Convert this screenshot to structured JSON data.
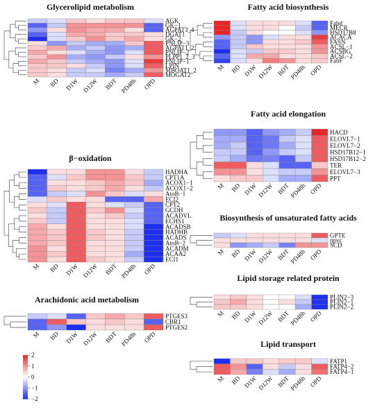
{
  "chart_data": [
    {
      "type": "heatmap",
      "title": "Glycerolipid metabolism",
      "categories": [
        "M",
        "BD",
        "D1W",
        "D12W",
        "BDT",
        "PD48h",
        "OPD"
      ],
      "rows": [
        "AGK",
        "GK−1",
        "AGPAT3_4",
        "DGAT1",
        "GK−2",
        "PNLIP−3",
        "AGPAT1_2",
        "PNLIP−2",
        "PLPP1_2_3",
        "PNLIP−1",
        "LPIN",
        "MBOAT1_2",
        "MOGAT2"
      ],
      "values": [
        [
          -0.5,
          -0.3,
          0.5,
          0.3,
          0.5,
          0.5,
          -0.3
        ],
        [
          -1.5,
          -0.5,
          1,
          1,
          1,
          1,
          -1.5
        ],
        [
          -1,
          0.3,
          1,
          0.8,
          0.8,
          0.3,
          -1.5
        ],
        [
          -1.5,
          -0.3,
          0.8,
          0.8,
          0.5,
          0.5,
          0.3
        ],
        [
          -2,
          -0.3,
          0.5,
          1,
          0.5,
          0.8,
          0.3
        ],
        [
          0.3,
          -1,
          -0.5,
          -0.8,
          -0.8,
          0.5,
          1.5
        ],
        [
          0.5,
          0.8,
          -0.8,
          -0.5,
          -1,
          -0.8,
          1.5
        ],
        [
          0.8,
          0.3,
          -0.3,
          -0.8,
          -1,
          -0.3,
          1.5
        ],
        [
          0.5,
          1,
          -0.8,
          -1,
          -0.5,
          0.3,
          1
        ],
        [
          0.8,
          0.5,
          -0.5,
          -0.8,
          -1,
          -0.3,
          1.8
        ],
        [
          0.5,
          0.5,
          0.3,
          -0.5,
          -1,
          -0.3,
          1.5
        ],
        [
          0.5,
          0.3,
          -0.5,
          -0.3,
          -1.2,
          -0.8,
          1
        ],
        [
          0.5,
          0.3,
          -0.5,
          -0.5,
          -0.8,
          -0.5,
          1.5
        ]
      ]
    },
    {
      "type": "heatmap",
      "title": "β−oxidation",
      "categories": [
        "M",
        "BD",
        "D1W",
        "D12W",
        "BDT",
        "PD48h",
        "OPD"
      ],
      "rows": [
        "HADHA",
        "CPT1A",
        "ACOX1−1",
        "ACOX1−2",
        "AtoB−1",
        "ECI2",
        "CPT2",
        "GCDH",
        "ACADVL",
        "ECHS1",
        "ACADSB",
        "HADHB",
        "ACADS",
        "AtoB−2",
        "ACADM",
        "ACAA2",
        "ECI1"
      ],
      "values": [
        [
          -2,
          0.3,
          0.3,
          1,
          1,
          0.3,
          -0.5
        ],
        [
          -1.5,
          -0.3,
          0.5,
          1,
          1,
          0.5,
          -0.5
        ],
        [
          -1.5,
          0.3,
          0.3,
          0.5,
          0.8,
          0.5,
          -0.8
        ],
        [
          -1.5,
          0.5,
          0.3,
          0.5,
          0.8,
          0.3,
          -0.5
        ],
        [
          -1.5,
          -0.5,
          -0.3,
          1,
          0.5,
          -0.3,
          0.3
        ],
        [
          -0.3,
          0.5,
          0.3,
          0.3,
          -1.5,
          -1.5,
          0.8
        ],
        [
          0.3,
          -0.3,
          1.5,
          0.3,
          -0.3,
          -0.5,
          -1.5
        ],
        [
          0.5,
          -0.5,
          1.5,
          0.5,
          1,
          -0.3,
          -1.5
        ],
        [
          0.3,
          -0.5,
          1.5,
          0.3,
          0.5,
          -0.5,
          -1.5
        ],
        [
          0.5,
          -0.5,
          1.5,
          0.3,
          0.3,
          -0.3,
          -1.5
        ],
        [
          0.8,
          0.3,
          1.5,
          0.3,
          0.3,
          -0.3,
          -2
        ],
        [
          0.8,
          0.5,
          1.5,
          0.5,
          0.3,
          -0.5,
          -2
        ],
        [
          0.8,
          0.5,
          1.5,
          0.5,
          0.3,
          -0.5,
          -2
        ],
        [
          0.8,
          0.5,
          1.5,
          0.3,
          0.3,
          -0.5,
          -2
        ],
        [
          1,
          0.3,
          1.5,
          0.3,
          0.3,
          -0.5,
          -2
        ],
        [
          1,
          0.5,
          1.5,
          0.3,
          0.3,
          -0.8,
          -2
        ],
        [
          1,
          0.3,
          1.5,
          0.5,
          0.3,
          -0.5,
          -2
        ]
      ]
    },
    {
      "type": "heatmap",
      "title": "Arachidonic acid metabolism",
      "categories": [
        "M",
        "BD",
        "D1W",
        "D12W",
        "BDT",
        "PD48h",
        "OPD"
      ],
      "rows": [
        "PTGES3",
        "CBR1",
        "PTGES2"
      ],
      "values": [
        [
          -0.5,
          -0.3,
          -1.5,
          0.5,
          0.8,
          0.5,
          1.5
        ],
        [
          -1.5,
          1.5,
          0.5,
          0.3,
          0.5,
          0.3,
          -1.5
        ],
        [
          -1.5,
          -1,
          -2,
          0.3,
          0.3,
          0.3,
          1.5
        ]
      ]
    },
    {
      "type": "heatmap",
      "title": "Fatty acid biosynthesis",
      "categories": [
        "M",
        "BD",
        "D1W",
        "D12W",
        "BDT",
        "PD48h",
        "OPD"
      ],
      "rows": [
        "Fabd",
        "MECR",
        "HSD17B8",
        "ACACA",
        "FASN",
        "ACSL−1",
        "ACSBG",
        "ACSL−2",
        "FabF"
      ],
      "values": [
        [
          2,
          -0.3,
          0.3,
          0.3,
          0.3,
          -0.3,
          -1.5
        ],
        [
          2,
          -0.3,
          0.3,
          0.3,
          0,
          -0.5,
          -1.5
        ],
        [
          2,
          -0.5,
          0.3,
          0,
          0,
          -0.3,
          -1
        ],
        [
          -1,
          -0.5,
          -1,
          -0.3,
          0.3,
          0.3,
          1.8
        ],
        [
          -1.5,
          -0.5,
          -1,
          0.3,
          0.3,
          0.5,
          1.5
        ],
        [
          -1.5,
          -0.5,
          0.5,
          0.3,
          0.3,
          0.3,
          1
        ],
        [
          -2,
          -0.3,
          -0.5,
          0.5,
          0.5,
          0.3,
          1
        ],
        [
          -1.5,
          -0.3,
          0.8,
          0.8,
          0.3,
          0.3,
          0.5
        ],
        [
          -1.8,
          -0.3,
          0.3,
          1.2,
          1,
          0.3,
          0.5
        ]
      ]
    },
    {
      "type": "heatmap",
      "title": "Fatty acid elongation",
      "categories": [
        "M",
        "BD",
        "D1W",
        "D12W",
        "BDT",
        "PD48h",
        "OPD"
      ],
      "rows": [
        "HACD",
        "ELOVL7−1",
        "ELOVL7−2",
        "HSD17B12−1",
        "HSD17B12−2",
        "TER",
        "ELOVL7−3",
        "PPT"
      ],
      "values": [
        [
          -1,
          -1,
          -1.5,
          -1,
          -0.8,
          -0.5,
          2
        ],
        [
          -0.8,
          -0.8,
          -1.5,
          -1.3,
          -0.5,
          -0.3,
          1.5
        ],
        [
          -0.8,
          -0.5,
          -1.5,
          -1.3,
          -0.8,
          -0.3,
          1.5
        ],
        [
          -0.5,
          -0.5,
          -1.5,
          -1,
          -0.5,
          -0.3,
          1.5
        ],
        [
          -0.5,
          -0.8,
          -1.3,
          -1.2,
          -1.5,
          -0.5,
          1.5
        ],
        [
          1.5,
          1.5,
          0.3,
          -0.3,
          -1.5,
          -1.5,
          0.5
        ],
        [
          1,
          1,
          0.3,
          -0.3,
          -0.5,
          -0.5,
          1
        ],
        [
          0.3,
          0.5,
          0.5,
          -0.3,
          -0.8,
          -0.8,
          1.5
        ]
      ]
    },
    {
      "type": "heatmap",
      "title": "Biosynthesis of unsaturated fatty acids",
      "categories": [
        "M",
        "BD",
        "D1W",
        "D12W",
        "BDT",
        "PD48h",
        "OPD"
      ],
      "rows": [
        "GPTE",
        "npvc",
        "SCD"
      ],
      "values": [
        [
          -0.5,
          -0.3,
          0.3,
          0.3,
          0.3,
          0.3,
          1.5
        ],
        [
          0.3,
          0.3,
          0.3,
          0.3,
          0.3,
          0.3,
          -0.3
        ],
        [
          0.3,
          -1,
          -0.8,
          -0.5,
          -1.2,
          1,
          1
        ]
      ]
    },
    {
      "type": "heatmap",
      "title": "Lipid storage related protein",
      "categories": [
        "M",
        "BD",
        "D1W",
        "D12W",
        "BDT",
        "PD48h",
        "OPD"
      ],
      "rows": [
        "PLIN2−3",
        "PLIN2−1",
        "PLIN2−2"
      ],
      "values": [
        [
          0.3,
          0.5,
          0.3,
          0,
          0,
          -0.3,
          -2
        ],
        [
          0.5,
          0.8,
          0.3,
          0,
          0.3,
          -0.5,
          -2
        ],
        [
          0.5,
          0.5,
          0.3,
          0,
          0,
          -0.8,
          -2
        ]
      ]
    },
    {
      "type": "heatmap",
      "title": "Lipid transport",
      "categories": [
        "M",
        "BD",
        "D1W",
        "D12W",
        "BDT",
        "PD48h",
        "OPD"
      ],
      "rows": [
        "FATP1",
        "FATP4−2",
        "FATP4−1"
      ],
      "values": [
        [
          -2,
          0.5,
          0.5,
          0.3,
          0.5,
          0.5,
          -0.3
        ],
        [
          1.5,
          1,
          -1.5,
          0.3,
          -0.5,
          0.3,
          1.5
        ],
        [
          1.5,
          0.8,
          -1.2,
          -0.3,
          -0.8,
          0.3,
          1.3
        ]
      ]
    }
  ],
  "colorbar": {
    "zlim": [
      -2,
      2
    ],
    "colors": [
      "#1e2ff0",
      "#ffffff",
      "#e8262a"
    ],
    "ticks": [
      2,
      1,
      0,
      {
        "value": -1,
        "label": "−1"
      },
      {
        "value": -2,
        "label": "−2"
      }
    ]
  }
}
